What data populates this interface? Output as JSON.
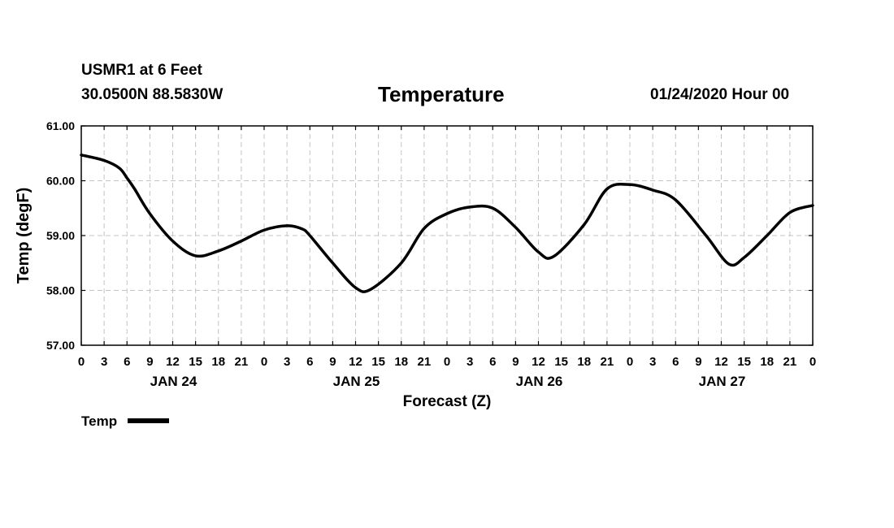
{
  "header": {
    "station": "USMR1 at 6 Feet",
    "coords": "30.0500N 88.5830W",
    "title": "Temperature",
    "datetime": "01/24/2020 Hour 00"
  },
  "chart_data": {
    "type": "line",
    "title": "Temperature",
    "xlabel": "Forecast (Z)",
    "ylabel": "Temp (degF)",
    "ylim": [
      57.0,
      61.0
    ],
    "xlim": [
      0,
      96
    ],
    "grid": true,
    "y_ticks": [
      "57.00",
      "58.00",
      "59.00",
      "60.00",
      "61.00"
    ],
    "y_tick_values": [
      57,
      58,
      59,
      60,
      61
    ],
    "x_tick_labels": [
      "0",
      "3",
      "6",
      "9",
      "12",
      "15",
      "18",
      "21",
      "0",
      "3",
      "6",
      "9",
      "12",
      "15",
      "18",
      "21",
      "0",
      "3",
      "6",
      "9",
      "12",
      "15",
      "18",
      "21",
      "0",
      "3",
      "6",
      "9",
      "12",
      "15",
      "18",
      "21",
      "0"
    ],
    "day_labels": [
      {
        "label": "JAN 24",
        "hour": 12
      },
      {
        "label": "JAN 25",
        "hour": 36
      },
      {
        "label": "JAN 26",
        "hour": 60
      },
      {
        "label": "JAN 27",
        "hour": 84
      }
    ],
    "legend": "top-left-below",
    "series": [
      {
        "name": "Temp",
        "color": "#000000",
        "x": [
          0,
          3,
          5,
          6,
          7,
          9,
          12,
          15,
          18,
          21,
          24,
          27,
          29,
          30,
          33,
          36,
          38,
          42,
          45,
          48,
          51,
          54,
          57,
          60,
          62,
          66,
          69,
          72,
          75,
          78,
          82,
          85,
          87,
          90,
          93,
          96
        ],
        "y": [
          60.47,
          60.37,
          60.23,
          60.05,
          59.85,
          59.4,
          58.9,
          58.63,
          58.72,
          58.9,
          59.1,
          59.18,
          59.12,
          59.0,
          58.5,
          58.05,
          58.02,
          58.5,
          59.13,
          59.4,
          59.52,
          59.5,
          59.15,
          58.7,
          58.62,
          59.2,
          59.85,
          59.93,
          59.83,
          59.65,
          59.0,
          58.48,
          58.6,
          59.0,
          59.42,
          59.55
        ]
      }
    ]
  }
}
